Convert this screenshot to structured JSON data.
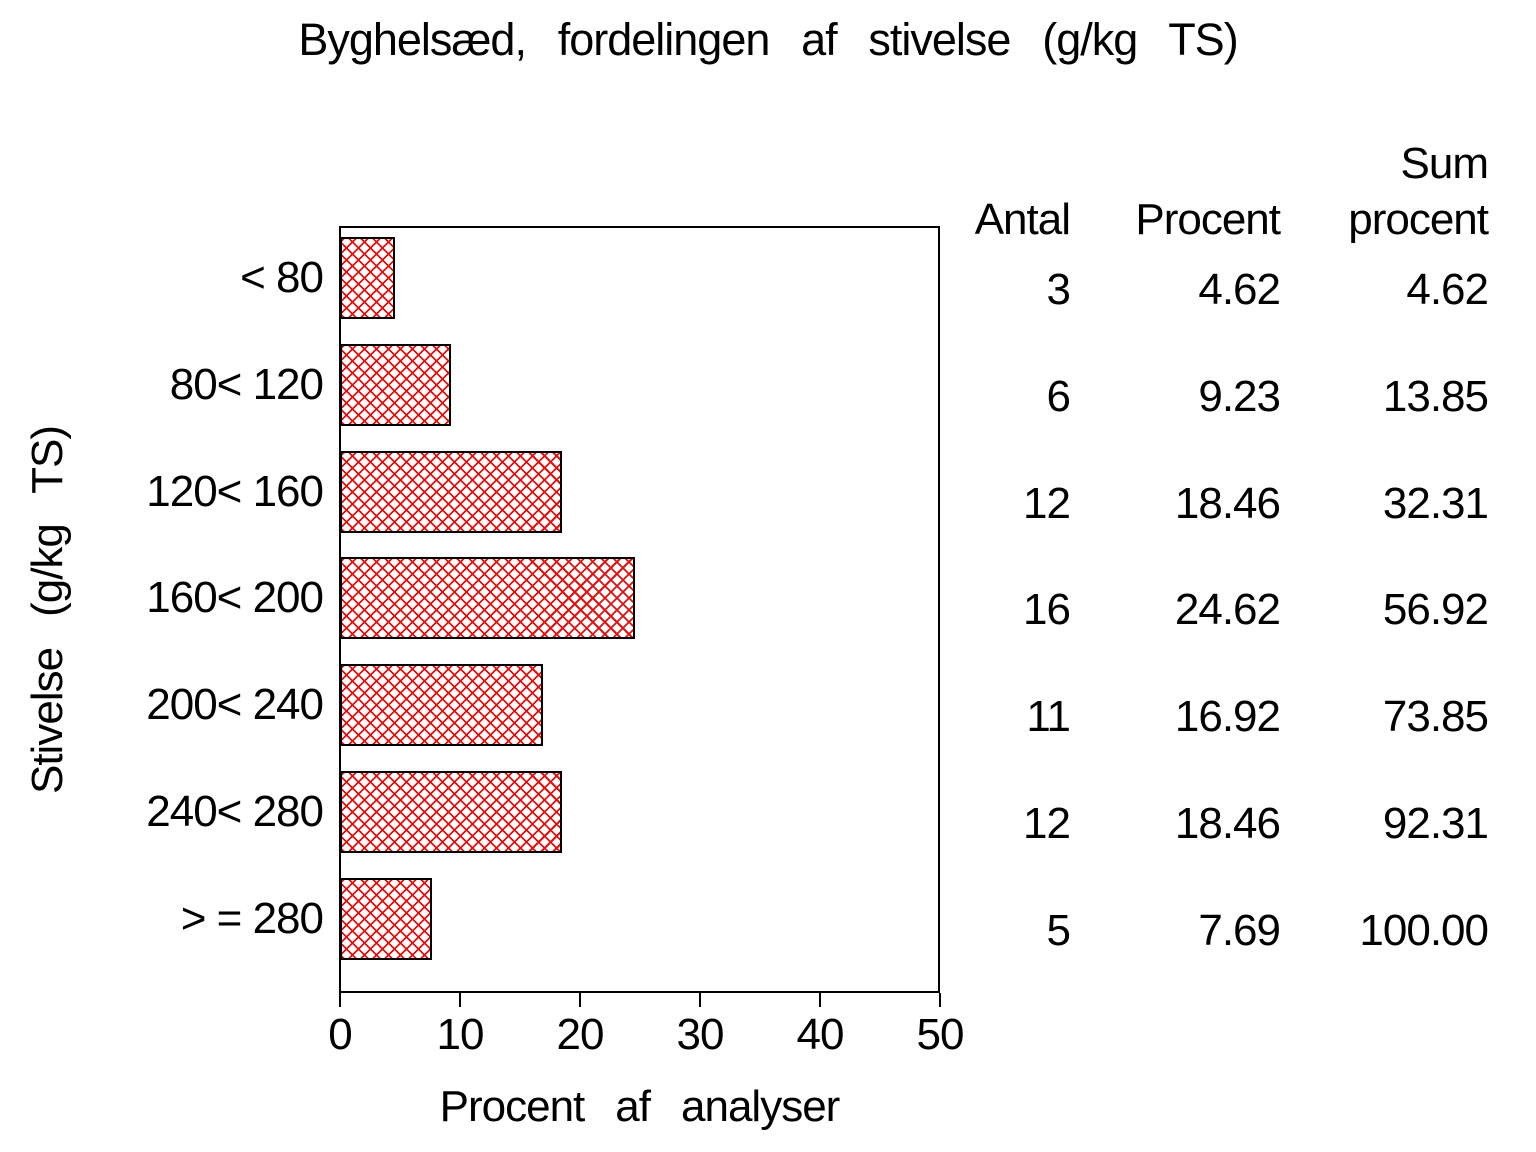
{
  "title": "Byghelsæd, fordelingen af stivelse (g/kg TS)",
  "chart_data": {
    "type": "bar",
    "orientation": "horizontal",
    "title": "Byghelsæd, fordelingen af stivelse (g/kg TS)",
    "xlabel": "Procent af analyser",
    "ylabel": "Stivelse (g/kg TS)",
    "categories": [
      "< 80",
      "80< 120",
      "120< 160",
      "160< 200",
      "200< 240",
      "240< 280",
      "> = 280"
    ],
    "values": [
      4.62,
      9.23,
      18.46,
      24.62,
      16.92,
      18.46,
      7.69
    ],
    "xlim": [
      0,
      50
    ],
    "xticks": [
      "0",
      "10",
      "20",
      "30",
      "40",
      "50"
    ],
    "grid": false,
    "legend": "none",
    "bar_fill_style": "red-crosshatch",
    "bar_hatch_color": "#e01212",
    "bar_border_color": "#000000",
    "table": {
      "col_headers": [
        "Antal",
        "Procent",
        "Sum procent"
      ],
      "antal": [
        "3",
        "6",
        "12",
        "16",
        "11",
        "12",
        "5"
      ],
      "procent": [
        "4.62",
        "9.23",
        "18.46",
        "24.62",
        "16.92",
        "18.46",
        "7.69"
      ],
      "sum_procent": [
        "4.62",
        "13.85",
        "32.31",
        "56.92",
        "73.85",
        "92.31",
        "100.00"
      ]
    }
  },
  "table_headers": {
    "antal": "Antal",
    "procent": "Procent",
    "sum_line1": "Sum",
    "sum_line2": "procent"
  }
}
